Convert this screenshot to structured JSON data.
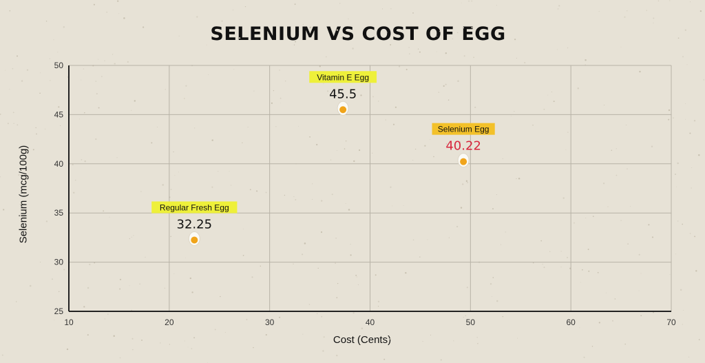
{
  "chart_data": {
    "type": "scatter",
    "title": "SELENIUM VS COST OF EGG",
    "xlabel": "Cost (Cents)",
    "ylabel": "Selenium (mcg/100g)",
    "xlim": [
      10,
      70
    ],
    "ylim": [
      25,
      50
    ],
    "x_ticks": [
      10,
      20,
      30,
      40,
      50,
      60,
      70
    ],
    "y_ticks": [
      25,
      30,
      35,
      40,
      45,
      50
    ],
    "grid": true,
    "points": [
      {
        "label": "Regular Fresh Egg",
        "value_text": "32.25",
        "x": 22.5,
        "y": 32.25,
        "label_bg": "#eef03a",
        "value_color": "#111111"
      },
      {
        "label": "Vitamin E Egg",
        "value_text": "45.5",
        "x": 37.3,
        "y": 45.5,
        "label_bg": "#eef03a",
        "value_color": "#111111"
      },
      {
        "label": "Selenium Egg",
        "value_text": "40.22",
        "x": 49.3,
        "y": 40.22,
        "label_bg": "#f3c12a",
        "value_color": "#d7263d"
      }
    ],
    "colors": {
      "background": "#e7e2d6",
      "grid": "#b7b2a6",
      "axis": "#222222",
      "egg_yolk": "#f0a41a",
      "egg_white": "#fbfaf5"
    }
  }
}
